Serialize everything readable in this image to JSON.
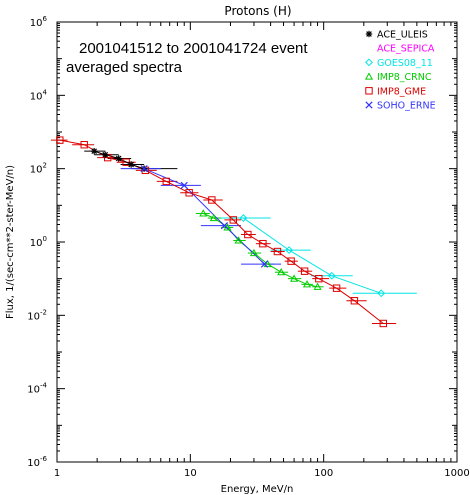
{
  "chart_data": {
    "type": "scatter",
    "title": "Protons (H)",
    "xlabel": "Energy, MeV/n",
    "ylabel": "Flux, 1/(sec-cm**2-ster-MeV/n)",
    "xscale": "log",
    "yscale": "log",
    "xlim": [
      1,
      1000
    ],
    "ylim": [
      1e-06,
      1000000.0
    ],
    "x_ticks": [
      1,
      10,
      100,
      1000
    ],
    "x_tick_labels": [
      "1",
      "10",
      "100",
      "1000"
    ],
    "y_ticks": [
      1e-06,
      0.0001,
      0.01,
      1.0,
      100.0,
      10000.0,
      1000000.0
    ],
    "y_tick_labels": [
      "10^-6",
      "10^-4",
      "10^-2",
      "10^0",
      "10^2",
      "10^4",
      "10^6"
    ],
    "annotation": [
      "2001041512 to 2001041724 event",
      "averaged spectra"
    ],
    "legend_position": "top-right",
    "series": [
      {
        "name": "ACE_ULEIS",
        "marker": "asterisk",
        "color": "#000000",
        "x": [
          1.9,
          2.3,
          2.9,
          3.6,
          4.5
        ],
        "y": [
          300,
          240,
          190,
          130,
          100
        ],
        "xerr_low": [
          1.6,
          1.9,
          2.4,
          3.0,
          3.6
        ],
        "xerr_high": [
          2.3,
          2.9,
          3.6,
          4.5,
          8.0
        ]
      },
      {
        "name": "ACE_SEPICA",
        "marker": "none",
        "color": "#ff00ff",
        "x": [],
        "y": []
      },
      {
        "name": "GOES08_11",
        "marker": "diamond",
        "color": "#00e5e5",
        "x": [
          25,
          55,
          115,
          270
        ],
        "y": [
          4.5,
          0.6,
          0.12,
          0.04
        ],
        "xerr_low": [
          15,
          40,
          80,
          165
        ],
        "xerr_high": [
          40,
          80,
          165,
          500
        ]
      },
      {
        "name": "IMP8_CRNC",
        "marker": "triangle",
        "color": "#00cc00",
        "x": [
          12.5,
          15,
          19,
          23,
          30,
          38,
          48,
          60,
          75,
          90
        ],
        "y": [
          6,
          4.5,
          2.5,
          1.1,
          0.5,
          0.25,
          0.15,
          0.1,
          0.07,
          0.06
        ],
        "xerr_low": [
          11,
          13.5,
          17,
          21,
          27,
          34,
          43,
          54,
          68,
          82
        ],
        "xerr_high": [
          14,
          17,
          21,
          26,
          34,
          43,
          54,
          68,
          83,
          100
        ]
      },
      {
        "name": "IMP8_GME",
        "marker": "square",
        "color": "#dd0000",
        "x": [
          1.05,
          1.6,
          2.4,
          3.3,
          4.6,
          6.6,
          9.8,
          14.5,
          21,
          27,
          35,
          45,
          57,
          72,
          92,
          125,
          170,
          280
        ],
        "y": [
          600,
          450,
          200,
          150,
          90,
          45,
          22,
          14,
          4,
          1.6,
          0.9,
          0.55,
          0.3,
          0.16,
          0.1,
          0.055,
          0.025,
          0.006
        ],
        "xerr_low": [
          0.9,
          1.3,
          2.0,
          2.8,
          3.9,
          5.6,
          8.4,
          12.5,
          18,
          24,
          31,
          40,
          51,
          64,
          82,
          110,
          148,
          230
        ],
        "xerr_high": [
          1.2,
          1.9,
          2.8,
          3.9,
          5.6,
          8.0,
          11.5,
          17.5,
          24,
          31,
          40,
          51,
          64,
          82,
          110,
          148,
          210,
          350
        ]
      },
      {
        "name": "SOHO_ERNE",
        "marker": "x",
        "color": "#3333ff",
        "x": [
          4.5,
          9.0,
          18,
          36
        ],
        "y": [
          100,
          35,
          2.8,
          0.25
        ],
        "xerr_low": [
          3.0,
          6.0,
          12,
          24
        ],
        "xerr_high": [
          6.0,
          12,
          24,
          48
        ]
      }
    ]
  }
}
